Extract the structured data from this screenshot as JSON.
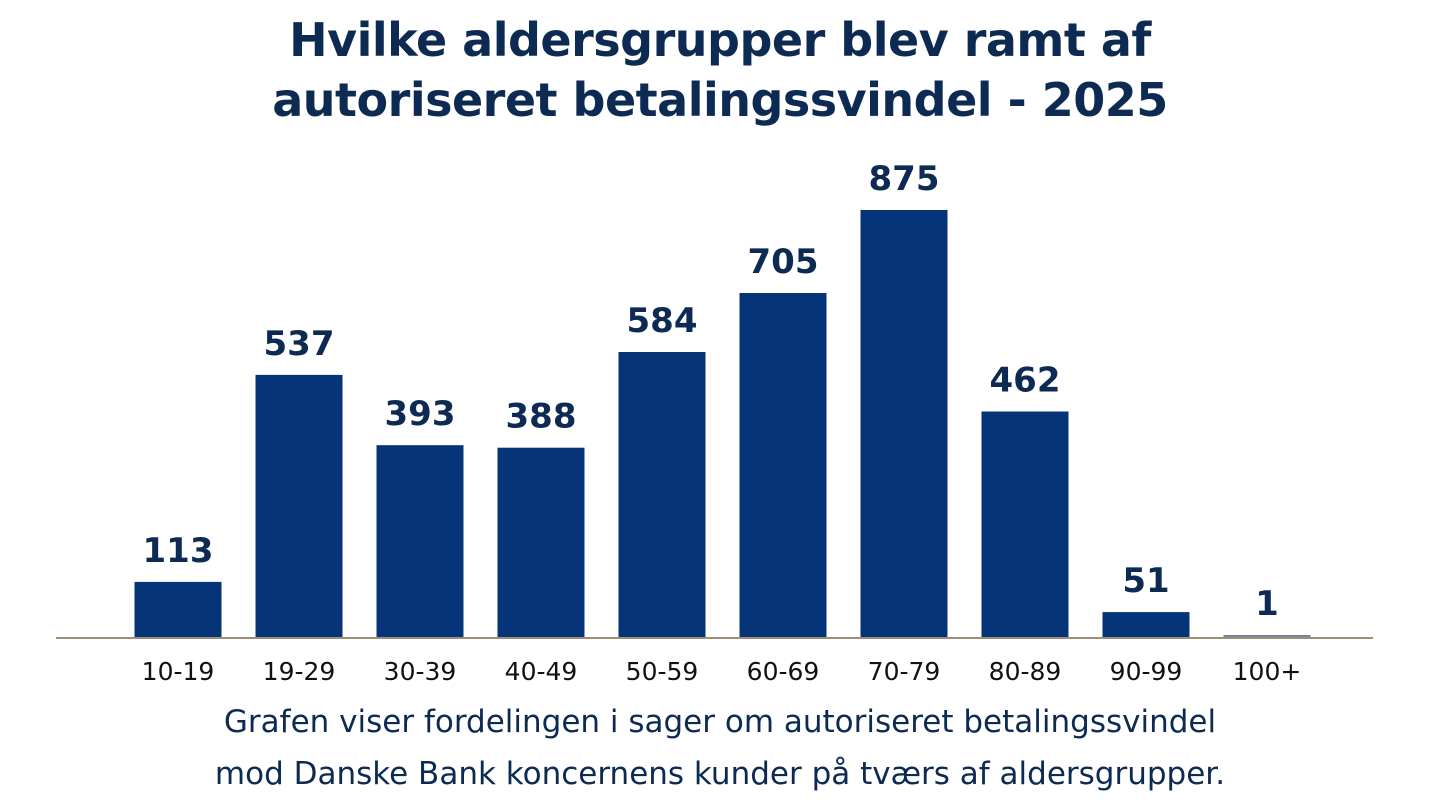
{
  "chart_data": {
    "type": "bar",
    "title_lines": [
      "Hvilke aldersgrupper blev ramt af",
      "autoriseret betalingssvindel - 2025"
    ],
    "categories": [
      "10-19",
      "19-29",
      "30-39",
      "40-49",
      "50-59",
      "60-69",
      "70-79",
      "80-89",
      "90-99",
      "100+"
    ],
    "values": [
      113,
      537,
      393,
      388,
      584,
      705,
      875,
      462,
      51,
      1
    ],
    "data_labels": [
      "113",
      "537",
      "393",
      "388",
      "584",
      "705",
      "875",
      "462",
      "51",
      "1"
    ],
    "xlabel": "",
    "ylabel": "",
    "ylim": [
      0,
      900
    ],
    "grid": false,
    "bar_color": "#063478",
    "axis_color": "#a08f78",
    "caption_lines": [
      "Grafen viser fordelingen i sager om autoriseret betalingssvindel",
      "mod Danske Bank koncernens kunder på tværs af aldersgrupper."
    ]
  }
}
